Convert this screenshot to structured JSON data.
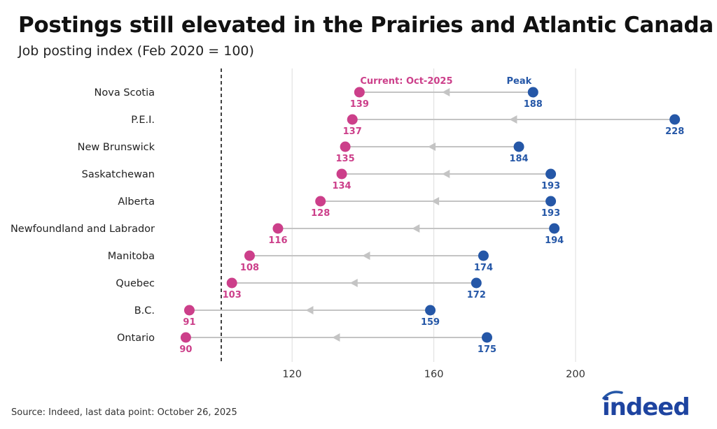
{
  "title": "Postings still elevated in the Prairies and Atlantic Canada",
  "subtitle": "Job posting index (Feb 2020 = 100)",
  "source": "Source: Indeed, last data point: October 26, 2025",
  "logo_text": "indeed",
  "colors": {
    "current": "#cc3f8a",
    "peak": "#2557a7",
    "connector": "#c4c4c4",
    "grid": "#dddddd",
    "reference": "#111111"
  },
  "chart_data": {
    "type": "dumbbell",
    "title": "Postings still elevated in the Prairies and Atlantic Canada",
    "subtitle": "Job posting index (Feb 2020 = 100)",
    "legend": {
      "current": "Current: Oct-2025",
      "peak": "Peak"
    },
    "categories": [
      "Nova Scotia",
      "P.E.I.",
      "New Brunswick",
      "Saskatchewan",
      "Alberta",
      "Newfoundland and Labrador",
      "Manitoba",
      "Quebec",
      "B.C.",
      "Ontario"
    ],
    "series": [
      {
        "name": "Current: Oct-2025",
        "values": [
          139,
          137,
          135,
          134,
          128,
          116,
          108,
          103,
          91,
          90
        ]
      },
      {
        "name": "Peak",
        "values": [
          188,
          228,
          184,
          193,
          193,
          194,
          174,
          172,
          159,
          175
        ]
      }
    ],
    "xticks": [
      120,
      160,
      200
    ],
    "xlim": [
      86,
      232
    ],
    "reference_line": 100,
    "grid": "vertical"
  }
}
